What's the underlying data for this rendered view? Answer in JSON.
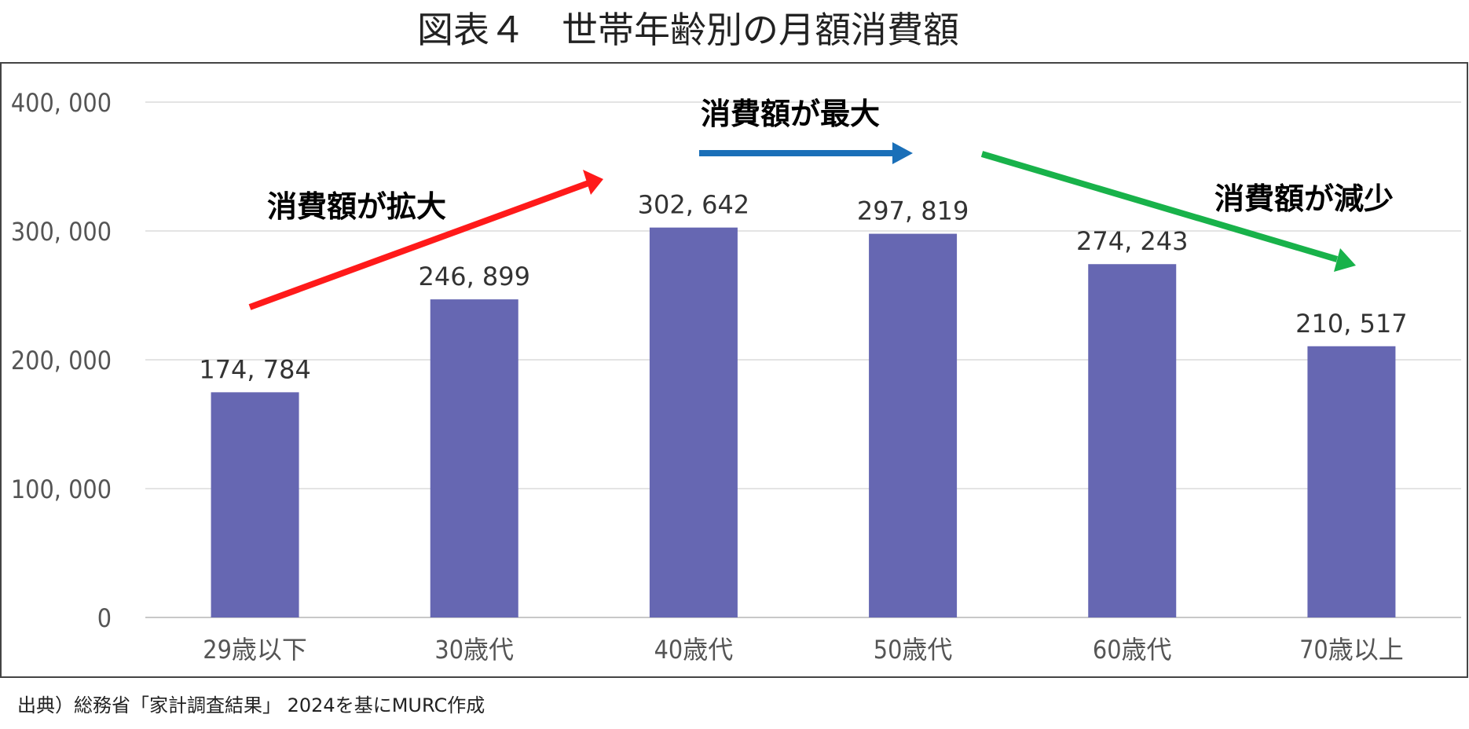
{
  "chart_data": {
    "type": "bar",
    "title": "図表４　世帯年齢別の月額消費額",
    "categories": [
      "29歳以下",
      "30歳代",
      "40歳代",
      "50歳代",
      "60歳代",
      "70歳以上"
    ],
    "values": [
      174784,
      246899,
      302642,
      297819,
      274243,
      210517
    ],
    "value_labels": [
      "174, 784",
      "246, 899",
      "302, 642",
      "297, 819",
      "274, 243",
      "210, 517"
    ],
    "y_ticks": [
      0,
      100000,
      200000,
      300000,
      400000
    ],
    "y_tick_labels": [
      "0",
      "100, 000",
      "200, 000",
      "300, 000",
      "400, 000"
    ],
    "ylim": [
      0,
      400000
    ],
    "grid": true,
    "bar_color": "#6667b2",
    "annotations": [
      {
        "text": "消費額が拡大",
        "arrow_color": "#ff1a1a"
      },
      {
        "text": "消費額が最大",
        "arrow_color": "#1a6fb8"
      },
      {
        "text": "消費額が減少",
        "arrow_color": "#18b24a"
      }
    ]
  },
  "source": "出典）総務省「家計調査結果」 2024を基にMURC作成"
}
